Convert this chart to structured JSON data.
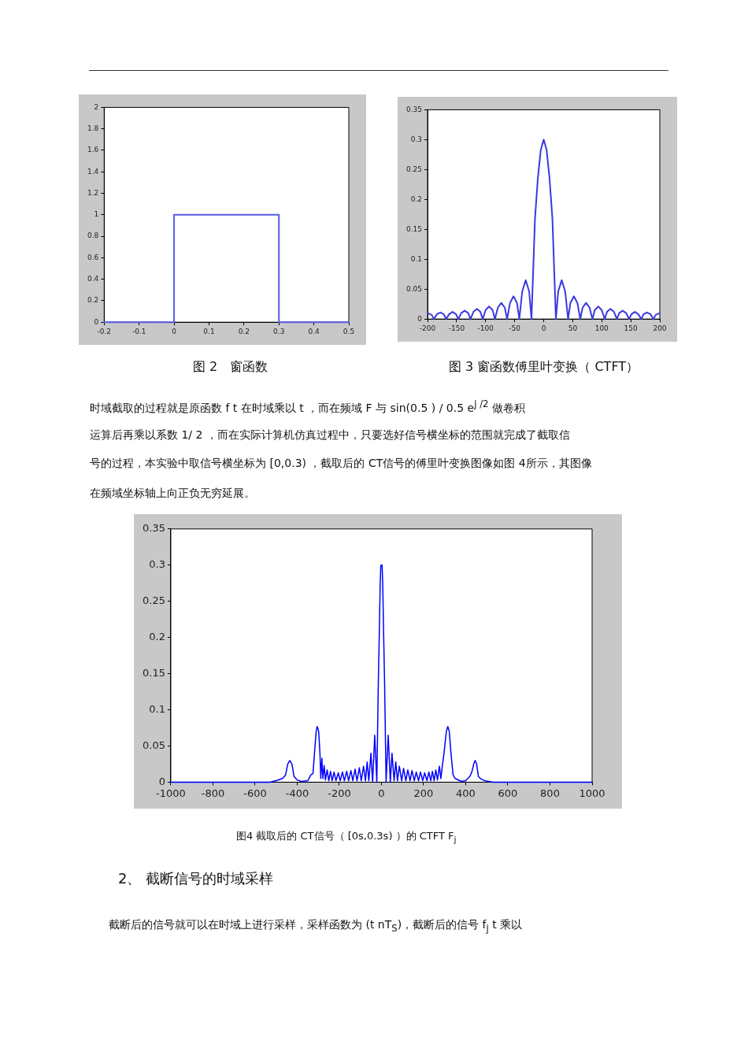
{
  "chart_data": [
    {
      "type": "line",
      "title": "图 2　窗函数",
      "xlim": [
        -0.2,
        0.5
      ],
      "xticks": [
        -0.2,
        -0.1,
        0,
        0.1,
        0.2,
        0.3,
        0.4,
        0.5
      ],
      "ylim": [
        0,
        2
      ],
      "yticks": [
        0,
        0.2,
        0.4,
        0.6,
        0.8,
        1,
        1.2,
        1.4,
        1.6,
        1.8,
        2
      ],
      "grid": false,
      "legend": false,
      "series": [
        {
          "color": "#5a5ae6",
          "x": [
            -0.2,
            0,
            0,
            0.3,
            0.3,
            0.5
          ],
          "values": [
            0,
            0,
            1,
            1,
            0,
            0
          ]
        }
      ]
    },
    {
      "type": "line",
      "title": "图 3 窗函数傅里叶变换（ CTFT）",
      "xlim": [
        -200,
        200
      ],
      "xticks": [
        -200,
        -150,
        -100,
        -50,
        0,
        50,
        100,
        150,
        200
      ],
      "ylim": [
        0,
        0.35
      ],
      "yticks": [
        0,
        0.05,
        0.1,
        0.15,
        0.2,
        0.25,
        0.3,
        0.35
      ],
      "grid": false,
      "legend": false,
      "annotations": [
        "时域截取的过程就是原函数 f t 在时域乘以 t ，而在频域 F 与 sin(0.5 ) / 0.5 e$^{j /2}$ 做卷积",
        "运算后再乘以系数 1/ 2 ，而在实际计算机仿真过程中，只要选好信号横坐标的范围就完成了截取信",
        "号的过程，本实验中取信号横坐标为 [0,0.3) ，截取后的 CT信号的傅里叶变换图像如图 4所示，其图像",
        "在频域坐标轴上向正负无穷延展。"
      ],
      "series": [
        {
          "color": "#3a3ae0",
          "x": [
            -200,
            -193,
            -189,
            -184,
            -178,
            -172,
            -168,
            -163,
            -157,
            -151,
            -147,
            -142,
            -136,
            -130,
            -126,
            -121,
            -115,
            -109,
            -105,
            -100,
            -94,
            -88,
            -84,
            -79,
            -73,
            -67,
            -63,
            -58,
            -52,
            -46,
            -42,
            -37,
            -31,
            -25,
            -21,
            -15,
            -10,
            -5,
            0,
            5,
            10,
            15,
            21,
            25,
            31,
            37,
            42,
            46,
            52,
            58,
            63,
            67,
            73,
            79,
            84,
            88,
            94,
            100,
            105,
            109,
            115,
            121,
            126,
            130,
            136,
            142,
            147,
            151,
            157,
            163,
            168,
            172,
            178,
            184,
            189,
            193,
            200
          ],
          "values": [
            0.01,
            0.007,
            0,
            0.008,
            0.011,
            0.008,
            0,
            0.008,
            0.012,
            0.008,
            0,
            0.01,
            0.014,
            0.01,
            0,
            0.012,
            0.017,
            0.012,
            0,
            0.015,
            0.021,
            0.015,
            0,
            0.019,
            0.027,
            0.019,
            0,
            0.027,
            0.038,
            0.027,
            0,
            0.046,
            0.065,
            0.046,
            0,
            0.168,
            0.236,
            0.283,
            0.3,
            0.283,
            0.236,
            0.168,
            0,
            0.046,
            0.065,
            0.046,
            0,
            0.027,
            0.038,
            0.027,
            0,
            0.019,
            0.027,
            0.019,
            0,
            0.015,
            0.021,
            0.015,
            0,
            0.012,
            0.017,
            0.012,
            0,
            0.01,
            0.014,
            0.01,
            0,
            0.008,
            0.012,
            0.008,
            0,
            0.008,
            0.011,
            0.008,
            0,
            0.007,
            0.01
          ]
        }
      ]
    },
    {
      "type": "line",
      "title": "图4 截取后的 CT信号（ [0s,0.3s) ）的 CTFT F$_{j}$",
      "xlim": [
        -1000,
        1000
      ],
      "xticks": [
        -1000,
        -800,
        -600,
        -400,
        -200,
        0,
        200,
        400,
        600,
        800,
        1000
      ],
      "ylim": [
        0,
        0.35
      ],
      "yticks": [
        0,
        0.05,
        0.1,
        0.15,
        0.2,
        0.25,
        0.3,
        0.35
      ],
      "grid": false,
      "legend": false,
      "annotations": [
        "2、 截断信号的时域采样",
        "截断后的信号就可以在时域上进行采样，采样函数为 (t nT$_{S}$)，截断后的信号 f$_{j}$ t 乘以"
      ],
      "series": [
        {
          "color": "#0000ff",
          "x": [
            -1000,
            -530,
            -500,
            -470,
            -455,
            -445,
            -435,
            -425,
            -415,
            -400,
            -380,
            -350,
            -335,
            -325,
            -318,
            -310,
            -305,
            -298,
            -292,
            -288,
            -283,
            -278,
            -272,
            -266,
            -258,
            -250,
            -242,
            -234,
            -225,
            -216,
            -205,
            -196,
            -185,
            -176,
            -165,
            -156,
            -145,
            -136,
            -125,
            -116,
            -105,
            -96,
            -85,
            -76,
            -68,
            -60,
            -50,
            -42,
            -32,
            -22,
            -15,
            -10,
            -6,
            -3,
            0,
            3,
            6,
            10,
            15,
            22,
            32,
            42,
            50,
            60,
            68,
            76,
            85,
            96,
            105,
            116,
            125,
            136,
            145,
            156,
            165,
            176,
            185,
            196,
            205,
            216,
            225,
            234,
            242,
            250,
            258,
            266,
            275,
            282,
            290,
            297,
            308,
            315,
            322,
            330,
            340,
            350,
            380,
            400,
            420,
            430,
            438,
            445,
            452,
            460,
            470,
            490,
            530,
            1000
          ],
          "values": [
            0,
            0,
            0.002,
            0.005,
            0.01,
            0.025,
            0.03,
            0.025,
            0.008,
            0.003,
            0.001,
            0.002,
            0.01,
            0.012,
            0.04,
            0.07,
            0.077,
            0.07,
            0.04,
            0.005,
            0.033,
            0.005,
            0.023,
            0.003,
            0.017,
            0.002,
            0.015,
            0.002,
            0.014,
            0.002,
            0.013,
            0.002,
            0.014,
            0.002,
            0.015,
            0.002,
            0.016,
            0.002,
            0.018,
            0.002,
            0.02,
            0.002,
            0.022,
            0.002,
            0.028,
            0.002,
            0.04,
            0,
            0.065,
            0,
            0.135,
            0.21,
            0.275,
            0.3,
            0.3,
            0.3,
            0.275,
            0.21,
            0.135,
            0,
            0.065,
            0,
            0.04,
            0.002,
            0.028,
            0.002,
            0.022,
            0.002,
            0.019,
            0.002,
            0.017,
            0.002,
            0.016,
            0.002,
            0.014,
            0.002,
            0.014,
            0.002,
            0.013,
            0.002,
            0.014,
            0.002,
            0.015,
            0.002,
            0.017,
            0.003,
            0.022,
            0.005,
            0.025,
            0.04,
            0.07,
            0.077,
            0.07,
            0.04,
            0.01,
            0.005,
            0.001,
            0.002,
            0.008,
            0.015,
            0.025,
            0.03,
            0.025,
            0.008,
            0.005,
            0.002,
            0,
            0
          ]
        }
      ]
    }
  ]
}
